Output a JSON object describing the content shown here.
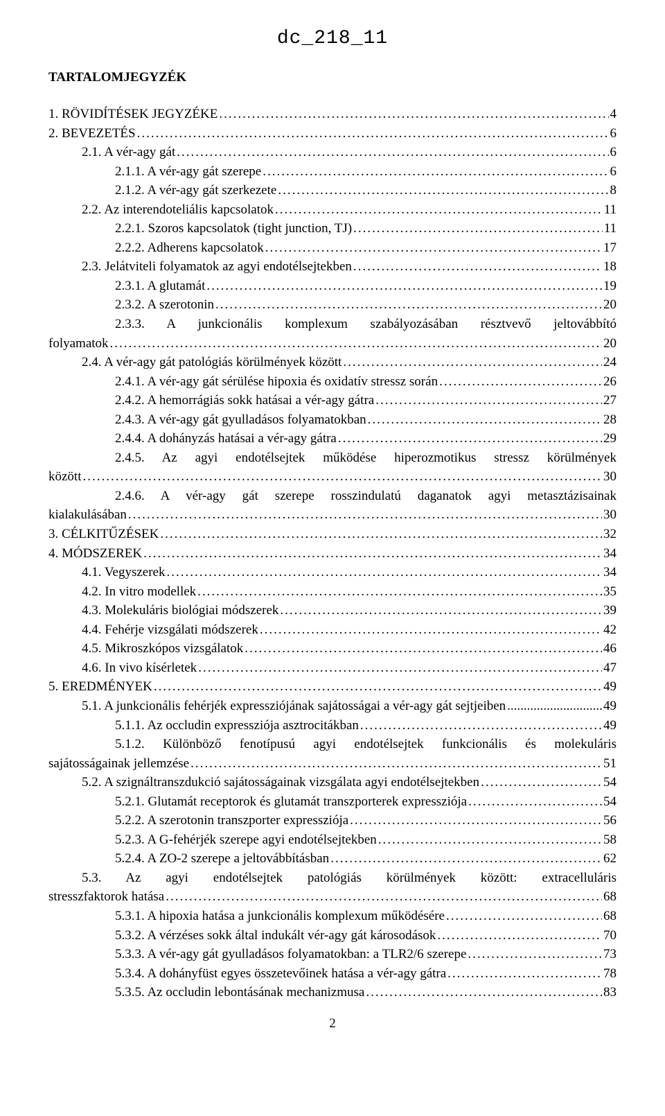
{
  "header": "dc_218_11",
  "title": "TARTALOMJEGYZÉK",
  "page_number": "2",
  "entries": [
    {
      "indent": 0,
      "text": "1. RÖVIDÍTÉSEK JEGYZÉKE",
      "page": "4"
    },
    {
      "indent": 0,
      "text": "2. BEVEZETÉS",
      "page": "6"
    },
    {
      "indent": 1,
      "text": "2.1. A vér-agy gát",
      "page": "6"
    },
    {
      "indent": 2,
      "text": "2.1.1. A vér-agy gát szerepe",
      "page": "6"
    },
    {
      "indent": 2,
      "text": "2.1.2. A vér-agy gát szerkezete",
      "page": "8"
    },
    {
      "indent": 1,
      "text": "2.2. Az interendoteliális kapcsolatok",
      "page": "11"
    },
    {
      "indent": 2,
      "text": "2.2.1. Szoros kapcsolatok (tight junction, TJ)",
      "page": "11"
    },
    {
      "indent": 2,
      "text": "2.2.2. Adherens kapcsolatok",
      "page": "17"
    },
    {
      "indent": 1,
      "text": "2.3. Jelátviteli folyamatok az agyi endotélsejtekben",
      "page": "18"
    },
    {
      "indent": 2,
      "text": "2.3.1. A glutamát",
      "page": "19"
    },
    {
      "indent": 2,
      "text": "2.3.2. A szerotonin",
      "page": "20"
    },
    {
      "indent": 2,
      "wrap": true,
      "first": "2.3.3.  A  junkcionális  komplexum  szabályozásában  résztvevő  jeltovábbító",
      "last": "folyamatok",
      "page": "20"
    },
    {
      "indent": 1,
      "text": "2.4. A vér-agy gát patológiás körülmények között",
      "page": "24"
    },
    {
      "indent": 2,
      "text": "2.4.1. A vér-agy gát sérülése hipoxia és oxidatív stressz során",
      "page": "26"
    },
    {
      "indent": 2,
      "text": "2.4.2. A hemorrágiás sokk hatásai a vér-agy gátra",
      "page": "27"
    },
    {
      "indent": 2,
      "text": "2.4.3. A vér-agy gát gyulladásos folyamatokban",
      "page": "28"
    },
    {
      "indent": 2,
      "text": "2.4.4. A dohányzás hatásai a vér-agy gátra",
      "page": "29"
    },
    {
      "indent": 2,
      "wrap": true,
      "first": "2.4.5.  Az  agyi  endotélsejtek  működése  hiperozmotikus  stressz  körülmények",
      "last": "között",
      "page": "30"
    },
    {
      "indent": 2,
      "wrap": true,
      "first": "2.4.6.  A  vér-agy  gát  szerepe  rosszindulatú  daganatok  agyi  metasztázisainak",
      "last": "kialakulásában",
      "page": "30"
    },
    {
      "indent": 0,
      "text": "3. CÉLKITŰZÉSEK",
      "page": "32"
    },
    {
      "indent": 0,
      "text": "4. MÓDSZEREK",
      "page": "34"
    },
    {
      "indent": 1,
      "text": "4.1. Vegyszerek",
      "page": "34"
    },
    {
      "indent": 1,
      "text": "4.2. In vitro modellek",
      "page": "35"
    },
    {
      "indent": 1,
      "text": "4.3. Molekuláris biológiai módszerek",
      "page": "39"
    },
    {
      "indent": 1,
      "text": "4.4. Fehérje vizsgálati módszerek",
      "page": "42"
    },
    {
      "indent": 1,
      "text": "4.5. Mikroszkópos vizsgálatok",
      "page": "46"
    },
    {
      "indent": 1,
      "text": "4.6. In vivo kísérletek",
      "page": "47"
    },
    {
      "indent": 0,
      "text": "5. EREDMÉNYEK",
      "page": "49"
    },
    {
      "indent": 1,
      "text": "5.1. A junkcionális fehérjék expressziójának sajátosságai a vér-agy gát sejtjeiben",
      "page": "49",
      "tight": true
    },
    {
      "indent": 2,
      "text": "5.1.1. Az occludin expressziója asztrocitákban",
      "page": "49"
    },
    {
      "indent": 2,
      "wrap": true,
      "first": "5.1.2.  Különböző  fenotípusú  agyi  endotélsejtek  funkcionális  és  molekuláris",
      "last": "sajátosságainak jellemzése",
      "page": "51"
    },
    {
      "indent": 1,
      "text": "5.2. A szignáltranszdukció sajátosságainak vizsgálata agyi endotélsejtekben",
      "page": "54"
    },
    {
      "indent": 2,
      "text": "5.2.1. Glutamát receptorok és glutamát transzporterek expressziója",
      "page": "54"
    },
    {
      "indent": 2,
      "text": "5.2.2. A szerotonin transzporter expressziója",
      "page": "56"
    },
    {
      "indent": 2,
      "text": "5.2.3. A G-fehérjék szerepe agyi endotélsejtekben",
      "page": "58"
    },
    {
      "indent": 2,
      "text": "5.2.4. A ZO-2 szerepe a jeltovábbításban",
      "page": "62"
    },
    {
      "indent": 1,
      "wrap": true,
      "first": "5.3.   Az   agyi   endotélsejtek   patológiás   körülmények   között:   extracelluláris",
      "last": "stresszfaktorok hatása",
      "page": "68"
    },
    {
      "indent": 2,
      "text": "5.3.1. A hipoxia hatása a junkcionális komplexum működésére",
      "page": "68"
    },
    {
      "indent": 2,
      "text": "5.3.2. A vérzéses sokk által indukált vér-agy gát károsodások",
      "page": "70"
    },
    {
      "indent": 2,
      "text": "5.3.3. A vér-agy gát gyulladásos folyamatokban: a TLR2/6 szerepe",
      "page": "73"
    },
    {
      "indent": 2,
      "text": "5.3.4. A dohányfüst egyes összetevőinek hatása a vér-agy gátra",
      "page": "78"
    },
    {
      "indent": 2,
      "text": "5.3.5. Az occludin lebontásának mechanizmusa",
      "page": "83"
    }
  ]
}
